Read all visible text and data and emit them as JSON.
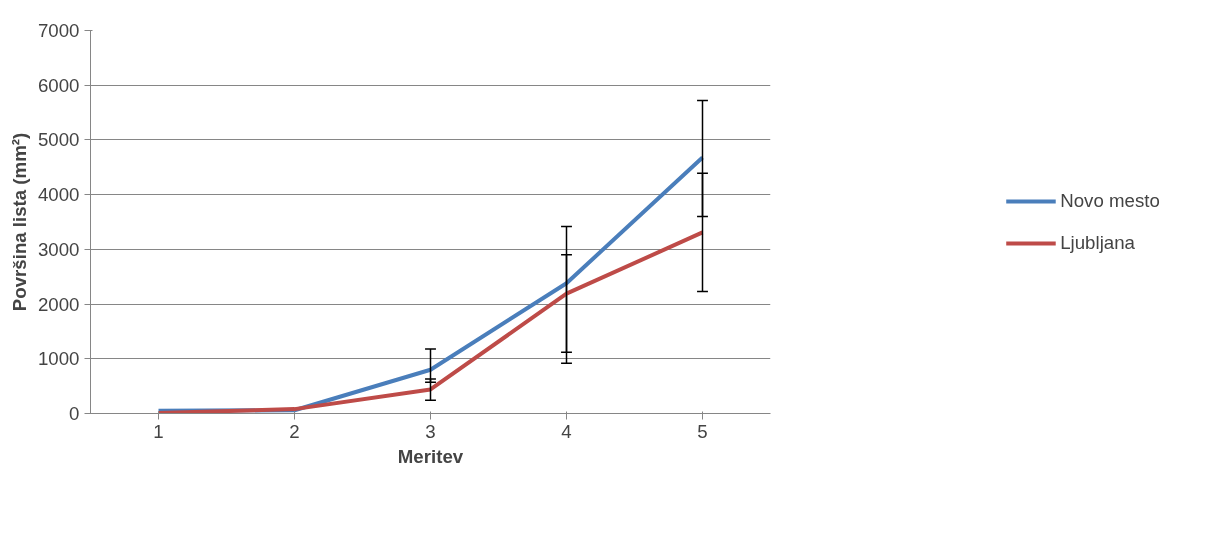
{
  "chart_data": {
    "type": "line",
    "xlabel": "Meritev",
    "ylabel": "Površina lista (mm²)",
    "categories": [
      "1",
      "2",
      "3",
      "4",
      "5"
    ],
    "series": [
      {
        "name": "Novo mesto",
        "color": "#4a7ebb",
        "values": [
          50,
          60,
          800,
          2380,
          4680
        ],
        "errors": [
          null,
          null,
          [
            570,
            1180
          ],
          [
            1120,
            2900
          ],
          [
            3600,
            5720
          ]
        ]
      },
      {
        "name": "Ljubljana",
        "color": "#be4b48",
        "values": [
          10,
          80,
          440,
          2190,
          3310
        ],
        "errors": [
          null,
          null,
          [
            240,
            630
          ],
          [
            920,
            3420
          ],
          [
            2230,
            4390
          ]
        ]
      }
    ],
    "ylim": [
      0,
      7000
    ],
    "yticks": [
      0,
      1000,
      2000,
      3000,
      4000,
      5000,
      6000,
      7000
    ],
    "grid": "y",
    "legend": "right",
    "marker": "none",
    "line_style": "solid"
  }
}
